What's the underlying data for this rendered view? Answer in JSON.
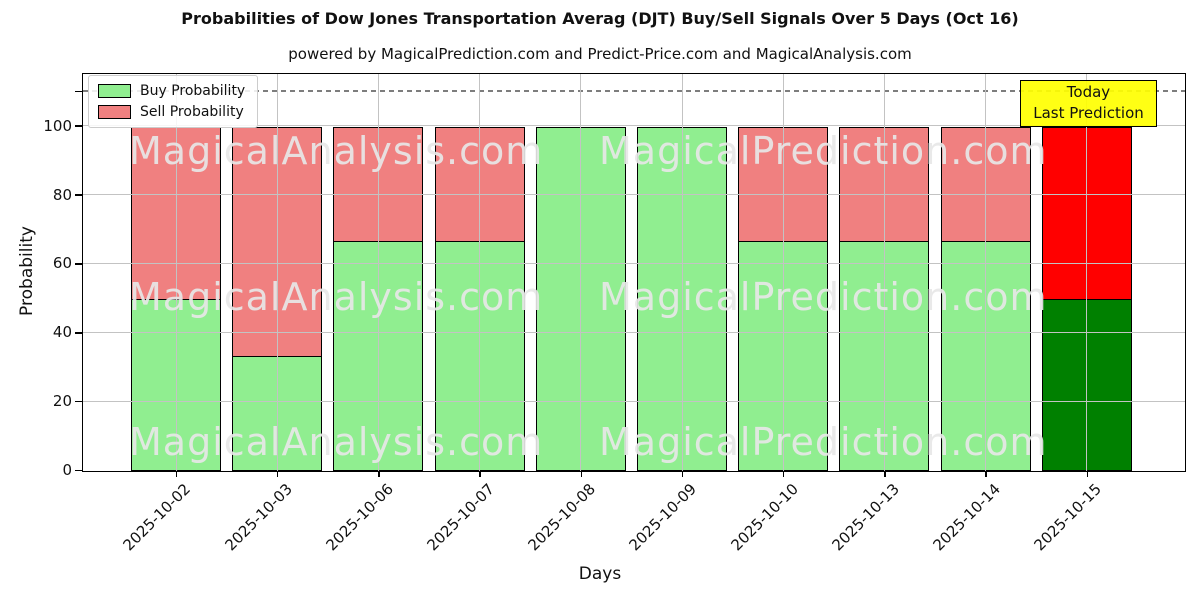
{
  "title": "Probabilities of Dow Jones Transportation Averag (DJT) Buy/Sell Signals Over 5 Days (Oct 16)",
  "subtitle": "powered by MagicalPrediction.com and Predict-Price.com and MagicalAnalysis.com",
  "legend": {
    "items": [
      {
        "label": "Buy Probability",
        "color": "#90EE90"
      },
      {
        "label": "Sell Probability",
        "color": "#F08080"
      }
    ]
  },
  "annotation": {
    "line1": "Today",
    "line2": "Last Prediction",
    "bg": "#FFFF00"
  },
  "watermarks": {
    "left": "MagicalAnalysis.com",
    "right": "MagicalPrediction.com"
  },
  "axes": {
    "ylabel": "Probability",
    "xlabel": "Days",
    "yticks": [
      0,
      20,
      40,
      60,
      80,
      100
    ],
    "unlabeled_tick": 110,
    "ylim": [
      0,
      115
    ],
    "dashed_line_y": 110,
    "grid": true
  },
  "chart_data": {
    "type": "bar",
    "stacked": true,
    "title": "Probabilities of Dow Jones Transportation Averag (DJT) Buy/Sell Signals Over 5 Days (Oct 16)",
    "xlabel": "Days",
    "ylabel": "Probability",
    "ylim": [
      0,
      115
    ],
    "legend_position": "upper left",
    "categories": [
      "2025-10-02",
      "2025-10-03",
      "2025-10-06",
      "2025-10-07",
      "2025-10-08",
      "2025-10-09",
      "2025-10-10",
      "2025-10-13",
      "2025-10-14",
      "2025-10-15"
    ],
    "series": [
      {
        "name": "Buy Probability",
        "color": "#90EE90",
        "values": [
          50,
          33.33,
          66.67,
          66.67,
          100,
          100,
          66.67,
          66.67,
          66.67,
          50
        ]
      },
      {
        "name": "Sell Probability",
        "color": "#F08080",
        "values": [
          50,
          66.67,
          33.33,
          33.33,
          0,
          0,
          33.33,
          33.33,
          33.33,
          50
        ]
      }
    ],
    "today_colors": {
      "buy": "#008000",
      "sell": "#FF0000"
    },
    "today_bar_category": "2025-10-15"
  }
}
